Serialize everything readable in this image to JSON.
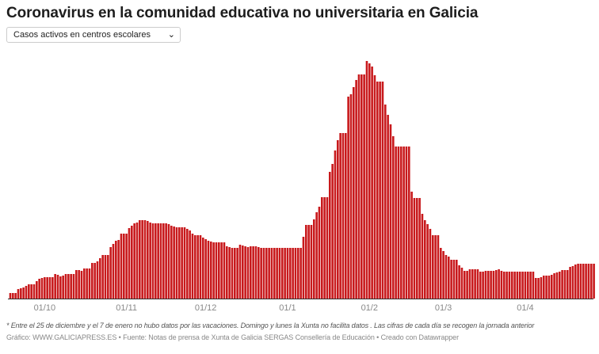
{
  "title": "Coronavirus en la comunidad educativa no universitaria en Galicia",
  "dropdown": {
    "selected": "Casos activos en centros escolares",
    "icon": "chevron-down-icon"
  },
  "colors": {
    "bar": "#c8191c",
    "baseline": "#333333",
    "tick_label": "#888888"
  },
  "chart_data": {
    "type": "bar",
    "title": "Coronavirus en la comunidad educativa no universitaria en Galicia",
    "xlabel": "",
    "ylabel": "",
    "y_axis_shown": false,
    "grid": false,
    "value_note": "relative bar heights estimated visually (no y axis printed)",
    "ylim": [
      0,
      310
    ],
    "ticks": [
      "01/10",
      "01/11",
      "01/12",
      "01/1",
      "01/2",
      "01/3",
      "01/4"
    ],
    "x": [
      "18/09",
      "19/09",
      "20/09",
      "21/09",
      "22/09",
      "23/09",
      "24/09",
      "25/09",
      "26/09",
      "27/09",
      "28/09",
      "29/09",
      "30/09",
      "01/10",
      "02/10",
      "03/10",
      "04/10",
      "05/10",
      "06/10",
      "07/10",
      "08/10",
      "09/10",
      "10/10",
      "11/10",
      "12/10",
      "13/10",
      "14/10",
      "15/10",
      "16/10",
      "17/10",
      "18/10",
      "19/10",
      "20/10",
      "21/10",
      "22/10",
      "23/10",
      "24/10",
      "25/10",
      "26/10",
      "27/10",
      "28/10",
      "29/10",
      "30/10",
      "31/10",
      "01/11",
      "02/11",
      "03/11",
      "04/11",
      "05/11",
      "06/11",
      "07/11",
      "08/11",
      "09/11",
      "10/11",
      "11/11",
      "12/11",
      "13/11",
      "14/11",
      "15/11",
      "16/11",
      "17/11",
      "18/11",
      "19/11",
      "20/11",
      "21/11",
      "22/11",
      "23/11",
      "24/11",
      "25/11",
      "26/11",
      "27/11",
      "28/11",
      "29/11",
      "30/11",
      "01/12",
      "02/12",
      "03/12",
      "04/12",
      "05/12",
      "06/12",
      "07/12",
      "08/12",
      "09/12",
      "10/12",
      "11/12",
      "12/12",
      "13/12",
      "14/12",
      "15/12",
      "16/12",
      "17/12",
      "18/12",
      "19/12",
      "20/12",
      "21/12",
      "22/12",
      "23/12",
      "24/12",
      "25/12",
      "26/12",
      "27/12",
      "28/12",
      "29/12",
      "30/12",
      "31/12",
      "01/1",
      "02/1",
      "03/1",
      "04/1",
      "05/1",
      "06/1",
      "07/1",
      "08/1",
      "09/1",
      "10/1",
      "11/1",
      "12/1",
      "13/1",
      "14/1",
      "15/1",
      "16/1",
      "17/1",
      "18/1",
      "19/1",
      "20/1",
      "21/1",
      "22/1",
      "23/1",
      "24/1",
      "25/1",
      "26/1",
      "27/1",
      "28/1",
      "29/1",
      "30/1",
      "31/1",
      "01/2",
      "02/2",
      "03/2",
      "04/2",
      "05/2",
      "06/2",
      "07/2",
      "08/2",
      "09/2",
      "10/2",
      "11/2",
      "12/2",
      "13/2",
      "14/2",
      "15/2",
      "16/2",
      "17/2",
      "18/2",
      "19/2",
      "20/2",
      "21/2",
      "22/2",
      "23/2",
      "24/2",
      "25/2",
      "26/2",
      "27/2",
      "28/2",
      "01/3",
      "02/3",
      "03/3",
      "04/3",
      "05/3",
      "06/3",
      "07/3",
      "08/3",
      "09/3",
      "10/3",
      "11/3",
      "12/3",
      "13/3",
      "14/3",
      "15/3",
      "16/3",
      "17/3",
      "18/3",
      "19/3",
      "20/3",
      "21/3",
      "22/3",
      "23/3",
      "24/3",
      "25/3",
      "26/3",
      "27/3",
      "28/3",
      "29/3",
      "30/3",
      "31/3",
      "01/4",
      "02/4",
      "03/4",
      "04/4",
      "05/4",
      "06/4",
      "07/4",
      "08/4",
      "09/4",
      "10/4",
      "11/4",
      "12/4",
      "13/4",
      "14/4",
      "15/4",
      "16/4",
      "17/4",
      "18/4",
      "19/4",
      "20/4",
      "21/4",
      "22/4",
      "23/4",
      "24/4",
      "25/4",
      "26/4",
      "27/4"
    ],
    "values": [
      7,
      7,
      7,
      12,
      13,
      14,
      16,
      18,
      18,
      18,
      22,
      25,
      26,
      27,
      27,
      27,
      27,
      31,
      30,
      28,
      29,
      31,
      31,
      31,
      31,
      36,
      36,
      35,
      38,
      38,
      38,
      45,
      45,
      47,
      51,
      55,
      55,
      55,
      65,
      69,
      73,
      74,
      82,
      82,
      82,
      89,
      92,
      95,
      96,
      99,
      99,
      99,
      98,
      96,
      95,
      95,
      95,
      95,
      95,
      95,
      94,
      92,
      91,
      90,
      90,
      90,
      90,
      88,
      86,
      82,
      80,
      80,
      80,
      77,
      75,
      73,
      72,
      71,
      71,
      71,
      71,
      71,
      66,
      65,
      64,
      64,
      64,
      68,
      67,
      66,
      65,
      66,
      66,
      66,
      65,
      64,
      64,
      64,
      64,
      64,
      64,
      64,
      64,
      64,
      64,
      64,
      64,
      64,
      64,
      64,
      64,
      78,
      93,
      93,
      93,
      100,
      109,
      116,
      128,
      128,
      128,
      160,
      170,
      187,
      200,
      209,
      209,
      209,
      255,
      258,
      267,
      276,
      283,
      283,
      283,
      300,
      297,
      293,
      282,
      274,
      274,
      274,
      245,
      232,
      220,
      205,
      192,
      192,
      192,
      192,
      192,
      192,
      135,
      127,
      127,
      127,
      107,
      99,
      94,
      88,
      80,
      80,
      80,
      64,
      60,
      55,
      53,
      49,
      49,
      49,
      42,
      39,
      35,
      35,
      37,
      37,
      37,
      37,
      34,
      34,
      35,
      35,
      35,
      35,
      36,
      37,
      35,
      34,
      34,
      34,
      34,
      34,
      34,
      34,
      34,
      34,
      34,
      34,
      34,
      26,
      26,
      27,
      29,
      29,
      29,
      30,
      32,
      33,
      34,
      36,
      36,
      36,
      40,
      41,
      43,
      44,
      44,
      44,
      44,
      44,
      44,
      44
    ]
  },
  "footer": {
    "note": "* Entre el 25 de diciembre y el 7 de enero no hubo datos por las vacaciones. Domingo y lunes la Xunta no facilita datos . Las cifras de cada día se recogen la jornada anterior",
    "credits": "Gráfico: WWW.GALICIAPRESS.ES • Fuente: Notas de prensa de Xunta de Galicia SERGAS Consellería de Educación • Creado con Datawrapper"
  }
}
